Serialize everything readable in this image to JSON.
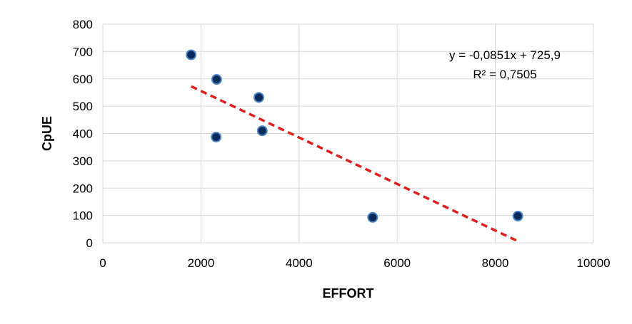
{
  "chart_data": {
    "type": "scatter",
    "title": "",
    "xlabel": "EFFORT",
    "ylabel": "CpUE",
    "xlim": [
      0,
      10000
    ],
    "ylim": [
      0,
      800
    ],
    "xticks": [
      0,
      2000,
      4000,
      6000,
      8000,
      10000
    ],
    "yticks": [
      0,
      100,
      200,
      300,
      400,
      500,
      600,
      700,
      800
    ],
    "grid": true,
    "legend": "none",
    "series": [
      {
        "points": [
          {
            "x": 1800,
            "y": 688
          },
          {
            "x": 2320,
            "y": 598
          },
          {
            "x": 2310,
            "y": 387
          },
          {
            "x": 3180,
            "y": 532
          },
          {
            "x": 3250,
            "y": 410
          },
          {
            "x": 5500,
            "y": 93
          },
          {
            "x": 8460,
            "y": 98
          }
        ],
        "color": "#0b2a5c"
      }
    ],
    "trendline": {
      "type": "linear",
      "slope": -0.0851,
      "intercept": 725.9,
      "x_range": [
        1800,
        8460
      ],
      "color": "#e02020",
      "style": "dashed"
    },
    "annotations": [
      {
        "text": "y = -0,0851x + 725,9"
      },
      {
        "text": "R² = 0,7505"
      }
    ]
  }
}
